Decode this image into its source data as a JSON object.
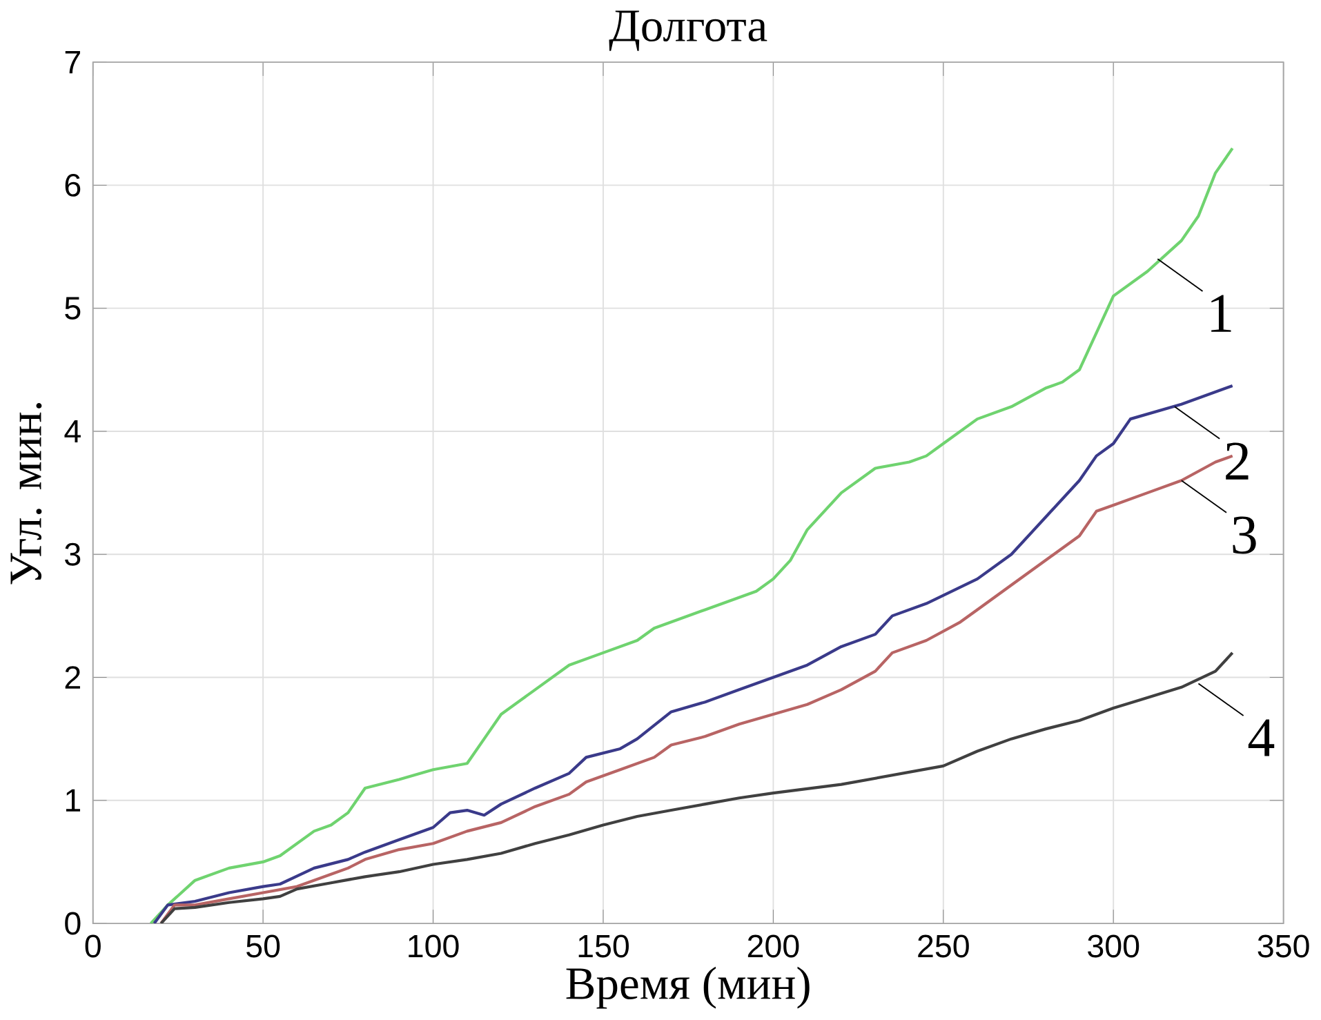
{
  "chart_data": {
    "type": "line",
    "title": "Долгота",
    "xlabel": "Время (мин)",
    "ylabel": "Угл. мин.",
    "xlim": [
      0,
      350
    ],
    "ylim": [
      0,
      7
    ],
    "xticks": [
      0,
      50,
      100,
      150,
      200,
      250,
      300,
      350
    ],
    "yticks": [
      0,
      1,
      2,
      3,
      4,
      5,
      6,
      7
    ],
    "grid": true,
    "series": [
      {
        "color": "#6fd36f",
        "x": [
          17,
          22,
          30,
          40,
          50,
          55,
          65,
          70,
          75,
          80,
          90,
          100,
          110,
          115,
          120,
          130,
          140,
          150,
          160,
          165,
          180,
          195,
          200,
          205,
          210,
          220,
          230,
          240,
          245,
          250,
          260,
          270,
          280,
          285,
          290,
          300,
          310,
          320,
          325,
          330,
          335
        ],
        "values": [
          0,
          0.15,
          0.35,
          0.45,
          0.5,
          0.55,
          0.75,
          0.8,
          0.9,
          1.1,
          1.17,
          1.25,
          1.3,
          1.5,
          1.7,
          1.9,
          2.1,
          2.2,
          2.3,
          2.4,
          2.55,
          2.7,
          2.8,
          2.95,
          3.2,
          3.5,
          3.7,
          3.75,
          3.8,
          3.9,
          4.1,
          4.2,
          4.35,
          4.4,
          4.5,
          5.1,
          5.3,
          5.55,
          5.75,
          6.1,
          6.3
        ]
      },
      {
        "color": "#3a3a8a",
        "x": [
          18,
          22,
          30,
          40,
          50,
          55,
          65,
          75,
          80,
          90,
          100,
          105,
          110,
          115,
          120,
          130,
          140,
          145,
          155,
          160,
          170,
          180,
          190,
          200,
          210,
          220,
          230,
          235,
          245,
          260,
          270,
          280,
          290,
          295,
          300,
          305,
          320,
          335
        ],
        "values": [
          0,
          0.15,
          0.18,
          0.25,
          0.3,
          0.32,
          0.45,
          0.52,
          0.58,
          0.68,
          0.78,
          0.9,
          0.92,
          0.88,
          0.97,
          1.1,
          1.22,
          1.35,
          1.42,
          1.5,
          1.72,
          1.8,
          1.9,
          2.0,
          2.1,
          2.25,
          2.35,
          2.5,
          2.6,
          2.8,
          3.0,
          3.3,
          3.6,
          3.8,
          3.9,
          4.1,
          4.22,
          4.37
        ]
      },
      {
        "color": "#b86464",
        "x": [
          20,
          24,
          30,
          40,
          50,
          60,
          70,
          75,
          80,
          90,
          100,
          110,
          120,
          130,
          140,
          145,
          155,
          165,
          170,
          180,
          190,
          200,
          210,
          220,
          230,
          235,
          245,
          255,
          260,
          270,
          280,
          290,
          295,
          300,
          310,
          320,
          330,
          335
        ],
        "values": [
          0,
          0.15,
          0.15,
          0.2,
          0.25,
          0.3,
          0.4,
          0.45,
          0.52,
          0.6,
          0.65,
          0.75,
          0.82,
          0.95,
          1.05,
          1.15,
          1.25,
          1.35,
          1.45,
          1.52,
          1.62,
          1.7,
          1.78,
          1.9,
          2.05,
          2.2,
          2.3,
          2.45,
          2.55,
          2.75,
          2.95,
          3.15,
          3.35,
          3.4,
          3.5,
          3.6,
          3.75,
          3.8
        ]
      },
      {
        "color": "#404040",
        "x": [
          20,
          24,
          30,
          40,
          50,
          55,
          60,
          70,
          80,
          90,
          100,
          110,
          120,
          130,
          140,
          150,
          160,
          170,
          180,
          190,
          200,
          220,
          230,
          250,
          260,
          270,
          280,
          290,
          300,
          320,
          330,
          335
        ],
        "values": [
          0,
          0.12,
          0.13,
          0.17,
          0.2,
          0.22,
          0.28,
          0.33,
          0.38,
          0.42,
          0.48,
          0.52,
          0.57,
          0.65,
          0.72,
          0.8,
          0.87,
          0.92,
          0.97,
          1.02,
          1.06,
          1.13,
          1.18,
          1.28,
          1.4,
          1.5,
          1.58,
          1.65,
          1.75,
          1.92,
          2.05,
          2.2
        ]
      }
    ],
    "annotations": [
      {
        "text": "1",
        "x": 313,
        "y": 5.4
      },
      {
        "text": "2",
        "x": 318,
        "y": 4.2
      },
      {
        "text": "3",
        "x": 320,
        "y": 3.6
      },
      {
        "text": "4",
        "x": 325,
        "y": 1.95
      }
    ]
  }
}
